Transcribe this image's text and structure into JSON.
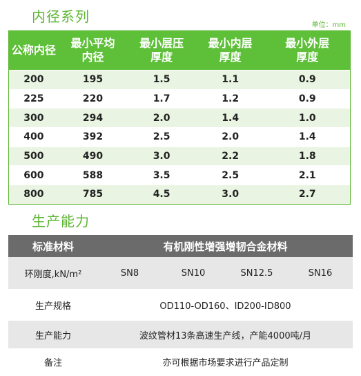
{
  "section1": {
    "title": "内径系列",
    "unit": "单位：mm",
    "headers": [
      [
        "公称内径"
      ],
      [
        "最小平均",
        "内径"
      ],
      [
        "最小层压",
        "厚度"
      ],
      [
        "最小内层",
        "厚度"
      ],
      [
        "最小外层",
        "厚度"
      ]
    ],
    "rows": [
      [
        "200",
        "195",
        "1.5",
        "1.1",
        "0.9"
      ],
      [
        "225",
        "220",
        "1.7",
        "1.2",
        "0.9"
      ],
      [
        "300",
        "294",
        "2.0",
        "1.4",
        "1.0"
      ],
      [
        "400",
        "392",
        "2.5",
        "2.0",
        "1.4"
      ],
      [
        "500",
        "490",
        "3.0",
        "2.2",
        "1.8"
      ],
      [
        "600",
        "588",
        "3.5",
        "2.5",
        "2.1"
      ],
      [
        "800",
        "785",
        "4.5",
        "3.0",
        "2.7"
      ]
    ]
  },
  "section2": {
    "title": "生产能力",
    "header_left": "标准材料",
    "header_right": "有机刚性增强增韧合金材料",
    "stiffness_label": "环刚度,kN/m²",
    "stiffness_values": [
      "SN8",
      "SN10",
      "SN12.5",
      "SN16"
    ],
    "spec_label": "生产规格",
    "spec_value": "OD110-OD160、ID200-ID800",
    "capacity_label": "生产能力",
    "capacity_value": "波纹管材13条高速生产线，产能4000吨/月",
    "note_label": "备注",
    "note_value": "亦可根据市场要求进行产品定制"
  }
}
